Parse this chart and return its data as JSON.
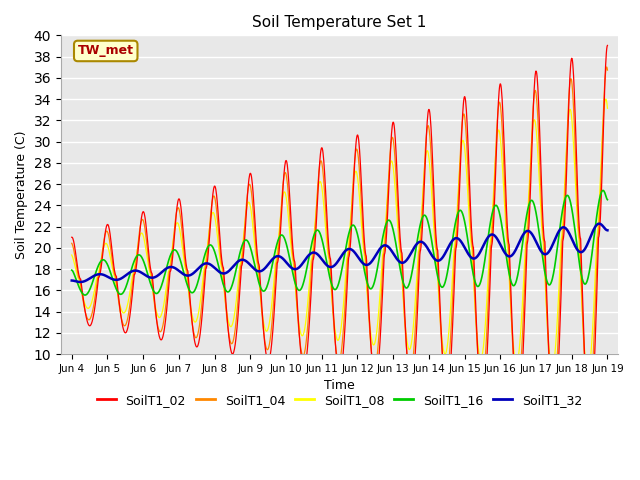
{
  "title": "Soil Temperature Set 1",
  "xlabel": "Time",
  "ylabel": "Soil Temperature (C)",
  "ylim": [
    10,
    40
  ],
  "xtick_labels": [
    "Jun 4",
    "Jun 5",
    "Jun 6",
    "Jun 7",
    "Jun 8",
    "Jun 9",
    "Jun 10",
    "Jun 11",
    "Jun 12",
    "Jun 13",
    "Jun 14",
    "Jun 15",
    "Jun 16",
    "Jun 17",
    "Jun 18",
    "Jun 19"
  ],
  "series_names": [
    "SoilT1_02",
    "SoilT1_04",
    "SoilT1_08",
    "SoilT1_16",
    "SoilT1_32"
  ],
  "series_colors": [
    "#ff0000",
    "#ff8800",
    "#ffff00",
    "#00cc00",
    "#0000bb"
  ],
  "legend_label": "TW_met",
  "legend_bg": "#ffffcc",
  "legend_border": "#aa8800",
  "bg_color": "#e8e8e8",
  "grid_color": "#ffffff",
  "n_points": 1440,
  "days": 15
}
